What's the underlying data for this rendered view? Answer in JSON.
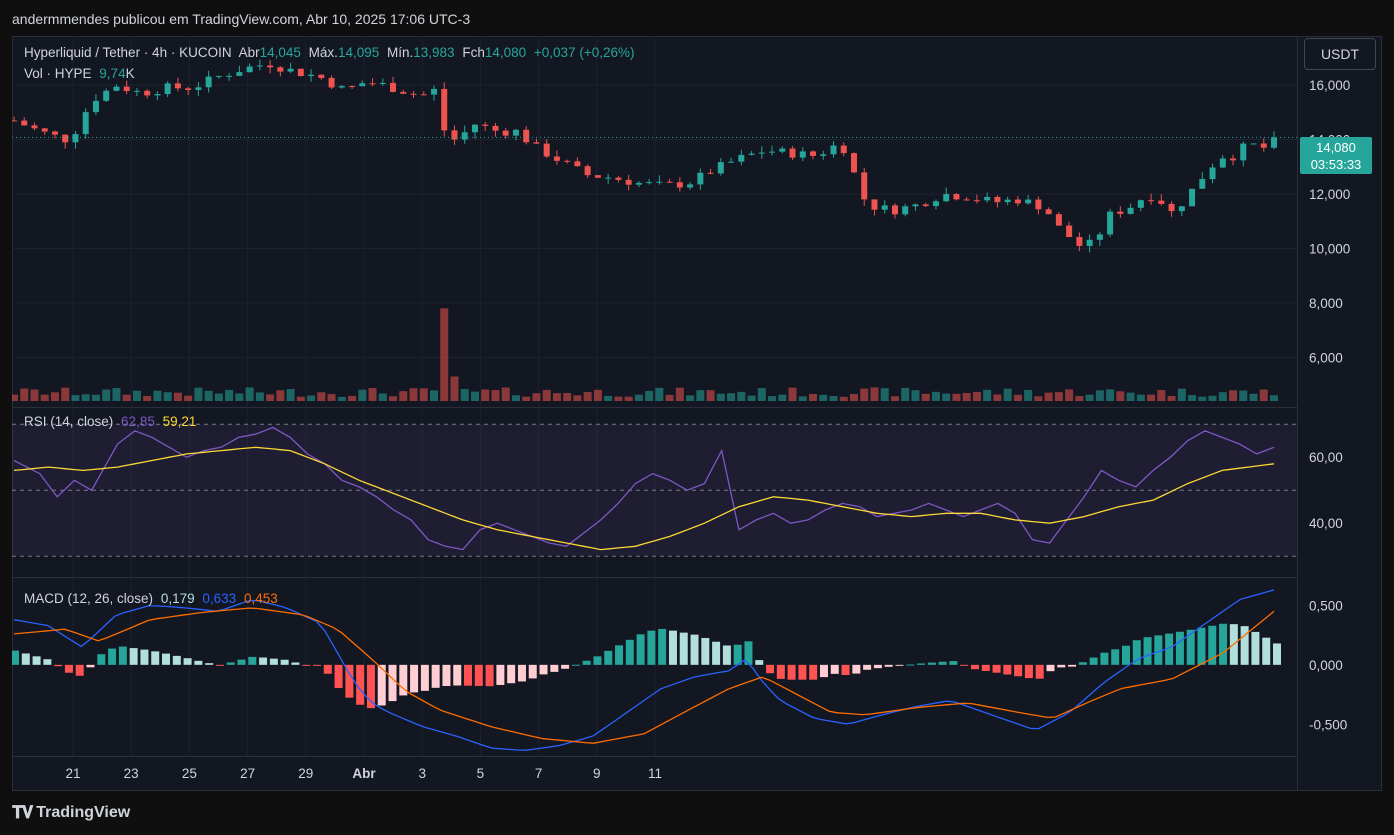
{
  "attribution": "andermmendes publicou em TradingView.com, Abr 10, 2025 17:06 UTC-3",
  "currency": "USDT",
  "brand": "TradingView",
  "symbol_info": {
    "title": "Hyperliquid / Tether · 4h · KUCOIN",
    "open_label": "Abr",
    "open": "14,045",
    "high_label": "Máx.",
    "high": "14,095",
    "low_label": "Mín.",
    "low": "13,983",
    "close_label": "Fch",
    "close": "14,080",
    "change": "+0,037 (+0,26%)"
  },
  "volume_legend": {
    "label": "Vol · HYPE",
    "value": "9,74",
    "unit": "K"
  },
  "rsi_legend": {
    "label": "RSI (14, close)",
    "rsi": "62,85",
    "ma": "59,21"
  },
  "macd_legend": {
    "label": "MACD (12, 26, close)",
    "hist": "0,179",
    "macd": "0,633",
    "signal": "0,453"
  },
  "last_price": {
    "price": "14,080",
    "countdown": "03:53:33"
  },
  "colors": {
    "up": "#26a69a",
    "down": "#ef5350",
    "rsi": "#7e57c2",
    "rsi_ma": "#fdd835",
    "macd": "#2962ff",
    "signal": "#ff6d00",
    "hist_up_strong": "#26a69a",
    "hist_up_weak": "#b2dfdb",
    "hist_down_strong": "#ff5252",
    "hist_down_weak": "#ffcdd2"
  },
  "chart_data": [
    {
      "type": "candlestick",
      "title": "Hyperliquid / Tether · 4h · KUCOIN",
      "price_axis_ticks": [
        "16,000",
        "14,000",
        "12,000",
        "10,000",
        "8,000",
        "6,000"
      ],
      "ylim": [
        4.4,
        17.8
      ],
      "x_ticks": [
        "21",
        "23",
        "25",
        "27",
        "29",
        "Abr",
        "3",
        "5",
        "7",
        "9",
        "11"
      ],
      "candle_count": 124,
      "anchors_close": [
        [
          0,
          14.7
        ],
        [
          4,
          14.3
        ],
        [
          8,
          14.0
        ],
        [
          10,
          14.4
        ],
        [
          12,
          15.4
        ],
        [
          16,
          16.0
        ],
        [
          20,
          15.7
        ],
        [
          24,
          15.9
        ],
        [
          28,
          15.9
        ],
        [
          32,
          16.3
        ],
        [
          36,
          16.6
        ],
        [
          40,
          16.8
        ],
        [
          44,
          16.5
        ],
        [
          48,
          16.3
        ],
        [
          52,
          15.8
        ],
        [
          55,
          16.1
        ],
        [
          58,
          16.0
        ],
        [
          61,
          15.8
        ],
        [
          64,
          15.6
        ],
        [
          66,
          15.8
        ],
        [
          68,
          14.0
        ],
        [
          70,
          14.0
        ],
        [
          72,
          14.6
        ],
        [
          76,
          14.3
        ],
        [
          79,
          14.3
        ],
        [
          82,
          13.7
        ],
        [
          86,
          13.2
        ],
        [
          90,
          12.7
        ],
        [
          94,
          12.6
        ],
        [
          98,
          12.4
        ],
        [
          102,
          12.3
        ],
        [
          106,
          12.4
        ],
        [
          110,
          12.9
        ],
        [
          114,
          13.3
        ],
        [
          118,
          13.6
        ],
        [
          122,
          13.5
        ],
        [
          126,
          13.4
        ],
        [
          130,
          13.9
        ],
        [
          134,
          11.6
        ],
        [
          138,
          11.4
        ],
        [
          142,
          11.6
        ],
        [
          146,
          12.0
        ],
        [
          150,
          11.9
        ],
        [
          154,
          11.7
        ],
        [
          158,
          11.8
        ],
        [
          162,
          11.5
        ],
        [
          164,
          10.8
        ],
        [
          166,
          10.4
        ],
        [
          168,
          10.0
        ],
        [
          170,
          10.3
        ],
        [
          172,
          11.2
        ],
        [
          176,
          11.6
        ],
        [
          178,
          12.0
        ],
        [
          180,
          11.8
        ],
        [
          182,
          11.3
        ],
        [
          184,
          11.8
        ],
        [
          186,
          12.4
        ],
        [
          188,
          13.0
        ],
        [
          190,
          13.4
        ],
        [
          192,
          13.4
        ],
        [
          194,
          13.9
        ],
        [
          196,
          13.6
        ],
        [
          198,
          14.1
        ]
      ],
      "volume_baseline": 4.4,
      "volume_spike_index": 68,
      "volume_spike_top": 7.8
    },
    {
      "type": "line",
      "name": "RSI",
      "y_ticks": [
        "60,00",
        "40,00"
      ],
      "ylim": [
        24,
        74
      ],
      "bands": [
        70,
        50,
        30
      ],
      "rsi_anchors": [
        [
          0,
          59
        ],
        [
          3,
          55
        ],
        [
          5,
          48
        ],
        [
          7,
          53
        ],
        [
          9,
          50
        ],
        [
          12,
          64
        ],
        [
          14,
          68
        ],
        [
          16,
          66
        ],
        [
          18,
          63
        ],
        [
          20,
          60
        ],
        [
          22,
          62
        ],
        [
          24,
          63
        ],
        [
          26,
          66
        ],
        [
          28,
          67
        ],
        [
          30,
          69
        ],
        [
          32,
          66
        ],
        [
          34,
          61
        ],
        [
          36,
          58
        ],
        [
          38,
          53
        ],
        [
          40,
          51
        ],
        [
          42,
          48
        ],
        [
          44,
          44
        ],
        [
          46,
          41
        ],
        [
          48,
          35
        ],
        [
          50,
          33
        ],
        [
          52,
          32
        ],
        [
          54,
          38
        ],
        [
          56,
          40
        ],
        [
          58,
          38
        ],
        [
          60,
          36
        ],
        [
          62,
          34
        ],
        [
          64,
          33
        ],
        [
          66,
          37
        ],
        [
          68,
          41
        ],
        [
          70,
          46
        ],
        [
          72,
          52
        ],
        [
          74,
          55
        ],
        [
          76,
          53
        ],
        [
          78,
          50
        ],
        [
          80,
          52
        ],
        [
          82,
          62
        ],
        [
          84,
          38
        ],
        [
          86,
          41
        ],
        [
          88,
          43
        ],
        [
          90,
          40
        ],
        [
          92,
          41
        ],
        [
          94,
          44
        ],
        [
          96,
          46
        ],
        [
          98,
          45
        ],
        [
          100,
          42
        ],
        [
          102,
          43
        ],
        [
          104,
          44
        ],
        [
          106,
          46
        ],
        [
          108,
          44
        ],
        [
          110,
          42
        ],
        [
          112,
          44
        ],
        [
          114,
          46
        ],
        [
          116,
          43
        ],
        [
          118,
          35
        ],
        [
          120,
          34
        ],
        [
          122,
          41
        ],
        [
          124,
          48
        ],
        [
          126,
          56
        ],
        [
          128,
          53
        ],
        [
          130,
          51
        ],
        [
          132,
          56
        ],
        [
          134,
          60
        ],
        [
          136,
          65
        ],
        [
          138,
          68
        ],
        [
          140,
          66
        ],
        [
          142,
          64
        ],
        [
          144,
          61
        ],
        [
          146,
          63
        ]
      ],
      "ma_anchors": [
        [
          0,
          56
        ],
        [
          4,
          57
        ],
        [
          8,
          56
        ],
        [
          12,
          57
        ],
        [
          16,
          59
        ],
        [
          20,
          61
        ],
        [
          24,
          62
        ],
        [
          28,
          63
        ],
        [
          32,
          62
        ],
        [
          36,
          58
        ],
        [
          40,
          53
        ],
        [
          44,
          49
        ],
        [
          48,
          45
        ],
        [
          52,
          41
        ],
        [
          56,
          38
        ],
        [
          60,
          36
        ],
        [
          64,
          34
        ],
        [
          68,
          32
        ],
        [
          72,
          33
        ],
        [
          76,
          36
        ],
        [
          80,
          40
        ],
        [
          84,
          45
        ],
        [
          88,
          48
        ],
        [
          92,
          47
        ],
        [
          96,
          45
        ],
        [
          100,
          43
        ],
        [
          104,
          42
        ],
        [
          108,
          43
        ],
        [
          112,
          43
        ],
        [
          116,
          41
        ],
        [
          120,
          40
        ],
        [
          124,
          42
        ],
        [
          128,
          45
        ],
        [
          132,
          47
        ],
        [
          136,
          52
        ],
        [
          140,
          56
        ],
        [
          146,
          58
        ]
      ]
    },
    {
      "type": "bar",
      "name": "MACD",
      "y_ticks": [
        "0,500",
        "0,000",
        "-0,500"
      ],
      "ylim": [
        -0.75,
        0.68
      ],
      "macd_anchors": [
        [
          0,
          0.38
        ],
        [
          4,
          0.33
        ],
        [
          8,
          0.15
        ],
        [
          12,
          0.42
        ],
        [
          16,
          0.5
        ],
        [
          20,
          0.48
        ],
        [
          24,
          0.45
        ],
        [
          28,
          0.55
        ],
        [
          32,
          0.48
        ],
        [
          36,
          0.35
        ],
        [
          38,
          0.1
        ],
        [
          40,
          -0.15
        ],
        [
          42,
          -0.32
        ],
        [
          44,
          -0.4
        ],
        [
          48,
          -0.52
        ],
        [
          52,
          -0.6
        ],
        [
          56,
          -0.7
        ],
        [
          60,
          -0.72
        ],
        [
          64,
          -0.68
        ],
        [
          68,
          -0.6
        ],
        [
          72,
          -0.4
        ],
        [
          76,
          -0.2
        ],
        [
          80,
          -0.1
        ],
        [
          84,
          -0.05
        ],
        [
          86,
          0.05
        ],
        [
          88,
          -0.15
        ],
        [
          90,
          -0.3
        ],
        [
          94,
          -0.45
        ],
        [
          98,
          -0.5
        ],
        [
          102,
          -0.42
        ],
        [
          106,
          -0.35
        ],
        [
          110,
          -0.3
        ],
        [
          114,
          -0.4
        ],
        [
          118,
          -0.5
        ],
        [
          120,
          -0.55
        ],
        [
          124,
          -0.4
        ],
        [
          128,
          -0.15
        ],
        [
          132,
          0.05
        ],
        [
          136,
          0.15
        ],
        [
          140,
          0.35
        ],
        [
          144,
          0.55
        ],
        [
          148,
          0.63
        ]
      ],
      "signal_anchors": [
        [
          0,
          0.26
        ],
        [
          6,
          0.3
        ],
        [
          10,
          0.2
        ],
        [
          16,
          0.38
        ],
        [
          22,
          0.44
        ],
        [
          28,
          0.48
        ],
        [
          34,
          0.42
        ],
        [
          38,
          0.3
        ],
        [
          42,
          0.05
        ],
        [
          46,
          -0.22
        ],
        [
          50,
          -0.38
        ],
        [
          56,
          -0.52
        ],
        [
          62,
          -0.62
        ],
        [
          68,
          -0.66
        ],
        [
          74,
          -0.58
        ],
        [
          80,
          -0.35
        ],
        [
          84,
          -0.2
        ],
        [
          88,
          -0.1
        ],
        [
          92,
          -0.25
        ],
        [
          96,
          -0.4
        ],
        [
          100,
          -0.42
        ],
        [
          106,
          -0.36
        ],
        [
          112,
          -0.32
        ],
        [
          118,
          -0.4
        ],
        [
          122,
          -0.45
        ],
        [
          126,
          -0.32
        ],
        [
          130,
          -0.2
        ],
        [
          136,
          -0.12
        ],
        [
          142,
          0.1
        ],
        [
          148,
          0.45
        ]
      ]
    }
  ]
}
